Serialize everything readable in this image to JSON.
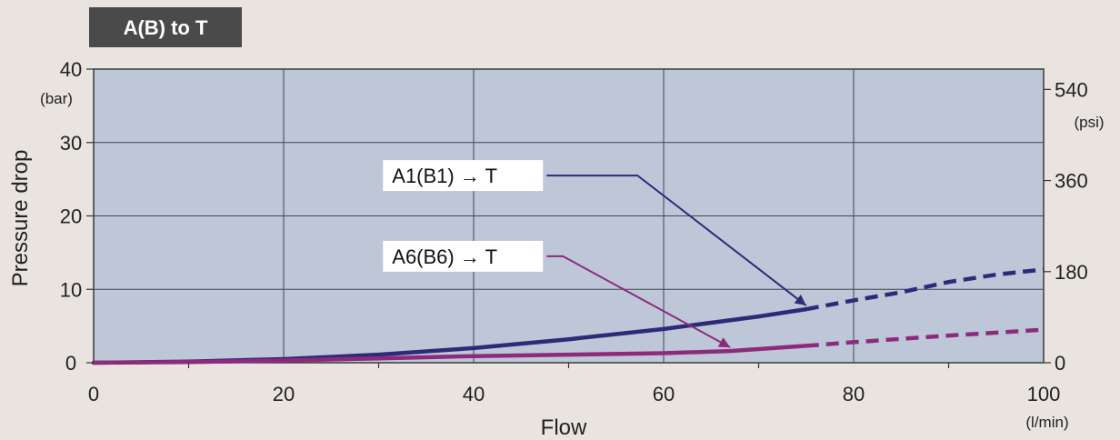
{
  "chart_data": {
    "type": "line",
    "title": "A(B) to T",
    "xlabel": "Flow",
    "ylabel": "Pressure drop",
    "x_unit": "(l/min)",
    "y_unit": "(bar)",
    "y2_unit": "(psi)",
    "xlim": [
      0,
      100
    ],
    "ylim": [
      0,
      40
    ],
    "x_ticks": [
      "0",
      "20",
      "40",
      "60",
      "80",
      "100"
    ],
    "y_ticks": [
      "0",
      "10",
      "20",
      "30",
      "40"
    ],
    "y2_ticks": [
      {
        "label": "0",
        "value": 0
      },
      {
        "label": "180",
        "value": 12.41
      },
      {
        "label": "360",
        "value": 24.82
      },
      {
        "label": "540",
        "value": 37.23
      }
    ],
    "grid": true,
    "series": [
      {
        "name": "A1(B1) → T",
        "color": "#2e2a78",
        "solid": [
          [
            0,
            0
          ],
          [
            10,
            0.15
          ],
          [
            20,
            0.5
          ],
          [
            30,
            1.1
          ],
          [
            40,
            2.0
          ],
          [
            50,
            3.2
          ],
          [
            60,
            4.6
          ],
          [
            70,
            6.3
          ],
          [
            75,
            7.3
          ]
        ],
        "dashed": [
          [
            75,
            7.3
          ],
          [
            80,
            8.5
          ],
          [
            85,
            9.6
          ],
          [
            90,
            11.0
          ],
          [
            95,
            12.0
          ],
          [
            100,
            12.7
          ]
        ],
        "label_pos": [
          29.5,
          25.5
        ],
        "arrow_target": [
          75,
          7.3
        ]
      },
      {
        "name": "A6(B6) → T",
        "color": "#8e2a7c",
        "solid": [
          [
            0,
            0
          ],
          [
            10,
            0.1
          ],
          [
            20,
            0.3
          ],
          [
            30,
            0.6
          ],
          [
            40,
            0.9
          ],
          [
            50,
            1.1
          ],
          [
            60,
            1.3
          ],
          [
            67,
            1.6
          ],
          [
            75,
            2.3
          ]
        ],
        "dashed": [
          [
            75,
            2.3
          ],
          [
            80,
            2.8
          ],
          [
            90,
            3.7
          ],
          [
            100,
            4.5
          ]
        ],
        "label_pos": [
          29.5,
          14.5
        ],
        "arrow_target": [
          67,
          1.6
        ]
      }
    ]
  }
}
